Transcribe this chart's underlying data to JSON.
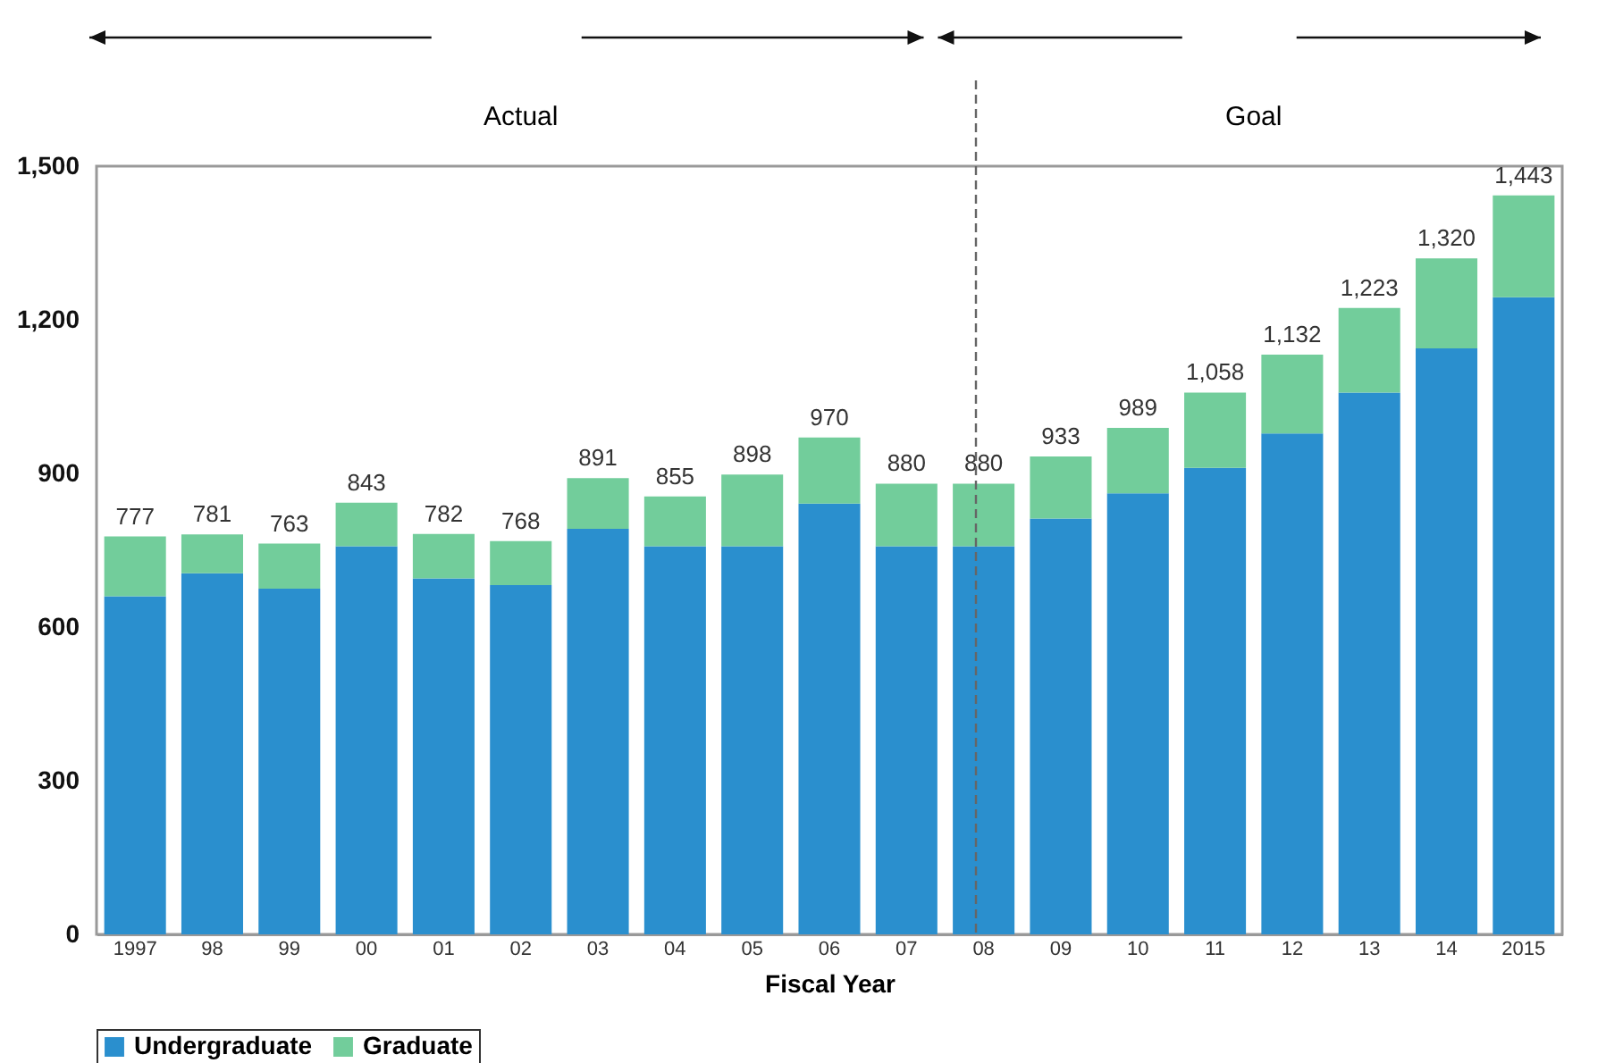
{
  "chart_data": {
    "type": "bar",
    "stacked": true,
    "xlabel": "Fiscal Year",
    "categories": [
      "1997",
      "98",
      "99",
      "00",
      "01",
      "02",
      "03",
      "04",
      "05",
      "06",
      "07",
      "08",
      "09",
      "10",
      "11",
      "12",
      "13",
      "14",
      "2015"
    ],
    "series": [
      {
        "name": "Undergraduate",
        "color": "#2a8fce",
        "values": [
          660,
          705,
          675,
          758,
          695,
          682,
          792,
          758,
          758,
          841,
          758,
          758,
          812,
          861,
          911,
          978,
          1058,
          1144,
          1244
        ]
      },
      {
        "name": "Graduate",
        "color": "#72cd9b",
        "values": [
          117,
          76,
          88,
          85,
          87,
          86,
          99,
          97,
          140,
          129,
          122,
          122,
          121,
          128,
          147,
          154,
          165,
          176,
          199
        ]
      }
    ],
    "totals": [
      "777",
      "781",
      "763",
      "843",
      "782",
      "768",
      "891",
      "855",
      "898",
      "970",
      "880",
      "880",
      "933",
      "989",
      "1,058",
      "1,132",
      "1,223",
      "1,320",
      "1,443"
    ],
    "ylim": [
      0,
      1500
    ],
    "yticks": [
      0,
      300,
      600,
      900,
      {
        "value": 1200,
        "label": "1,200"
      },
      {
        "value": 1500,
        "label": "1,500"
      }
    ],
    "ref_lines": [
      {
        "axis": "x",
        "value": "08",
        "line_style": "dashed",
        "color": "#666666"
      }
    ],
    "annotations": [
      "Actual",
      "Goal"
    ],
    "legend": "bottom",
    "grid": false
  }
}
